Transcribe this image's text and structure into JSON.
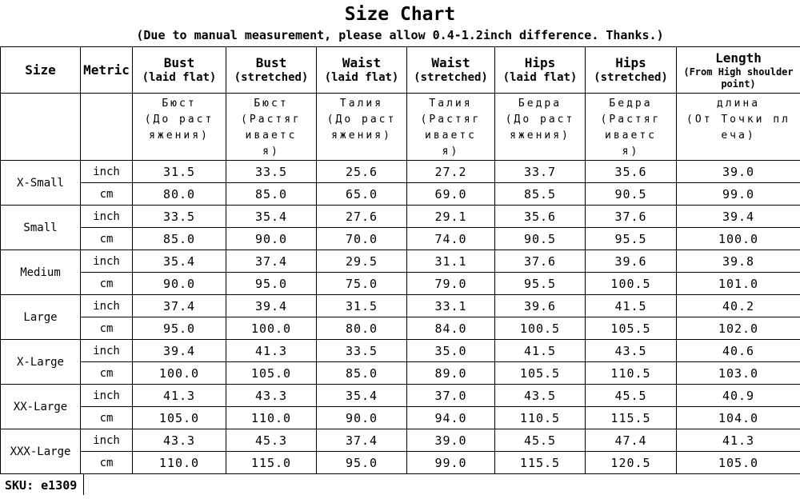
{
  "title": "Size Chart",
  "subtitle": "(Due to manual measurement, please allow 0.4-1.2inch difference. Thanks.)",
  "sku": "SKU: e1309",
  "chart_data": {
    "type": "table",
    "title": "Size Chart",
    "columns": [
      {
        "en": "Size",
        "sub": "",
        "ru": ""
      },
      {
        "en": "Metric",
        "sub": "",
        "ru": ""
      },
      {
        "en": "Bust",
        "sub": "(laid flat)",
        "ru": "Бюст\n(До раст\nяжения)"
      },
      {
        "en": "Bust",
        "sub": "(stretched)",
        "ru": "Бюст\n(Растяг\nиваетс\nя)"
      },
      {
        "en": "Waist",
        "sub": "(laid flat)",
        "ru": "Талия\n(До раст\nяжения)"
      },
      {
        "en": "Waist",
        "sub": "(stretched)",
        "ru": "Талия\n(Растяг\nиваетс\nя)"
      },
      {
        "en": "Hips",
        "sub": "(laid flat)",
        "ru": "Бедра\n(До раст\nяжения)"
      },
      {
        "en": "Hips",
        "sub": "(stretched)",
        "ru": "Бедра\n(Растяг\nиваетс\nя)"
      },
      {
        "en": "Length",
        "sub": "(From High shoulder point)",
        "ru": "длина\n(От Точки пл\nеча)"
      }
    ],
    "sizes": [
      {
        "label": "X-Small",
        "metrics": [
          {
            "label": "inch",
            "values": [
              "31.5",
              "33.5",
              "25.6",
              "27.2",
              "33.7",
              "35.6",
              "39.0"
            ]
          },
          {
            "label": "cm",
            "values": [
              "80.0",
              "85.0",
              "65.0",
              "69.0",
              "85.5",
              "90.5",
              "99.0"
            ]
          }
        ]
      },
      {
        "label": "Small",
        "metrics": [
          {
            "label": "inch",
            "values": [
              "33.5",
              "35.4",
              "27.6",
              "29.1",
              "35.6",
              "37.6",
              "39.4"
            ]
          },
          {
            "label": "cm",
            "values": [
              "85.0",
              "90.0",
              "70.0",
              "74.0",
              "90.5",
              "95.5",
              "100.0"
            ]
          }
        ]
      },
      {
        "label": "Medium",
        "metrics": [
          {
            "label": "inch",
            "values": [
              "35.4",
              "37.4",
              "29.5",
              "31.1",
              "37.6",
              "39.6",
              "39.8"
            ]
          },
          {
            "label": "cm",
            "values": [
              "90.0",
              "95.0",
              "75.0",
              "79.0",
              "95.5",
              "100.5",
              "101.0"
            ]
          }
        ]
      },
      {
        "label": "Large",
        "metrics": [
          {
            "label": "inch",
            "values": [
              "37.4",
              "39.4",
              "31.5",
              "33.1",
              "39.6",
              "41.5",
              "40.2"
            ]
          },
          {
            "label": "cm",
            "values": [
              "95.0",
              "100.0",
              "80.0",
              "84.0",
              "100.5",
              "105.5",
              "102.0"
            ]
          }
        ]
      },
      {
        "label": "X-Large",
        "metrics": [
          {
            "label": "inch",
            "values": [
              "39.4",
              "41.3",
              "33.5",
              "35.0",
              "41.5",
              "43.5",
              "40.6"
            ]
          },
          {
            "label": "cm",
            "values": [
              "100.0",
              "105.0",
              "85.0",
              "89.0",
              "105.5",
              "110.5",
              "103.0"
            ]
          }
        ]
      },
      {
        "label": "XX-Large",
        "metrics": [
          {
            "label": "inch",
            "values": [
              "41.3",
              "43.3",
              "35.4",
              "37.0",
              "43.5",
              "45.5",
              "40.9"
            ]
          },
          {
            "label": "cm",
            "values": [
              "105.0",
              "110.0",
              "90.0",
              "94.0",
              "110.5",
              "115.5",
              "104.0"
            ]
          }
        ]
      },
      {
        "label": "XXX-Large",
        "metrics": [
          {
            "label": "inch",
            "values": [
              "43.3",
              "45.3",
              "37.4",
              "39.0",
              "45.5",
              "47.4",
              "41.3"
            ]
          },
          {
            "label": "cm",
            "values": [
              "110.0",
              "115.0",
              "95.0",
              "99.0",
              "115.5",
              "120.5",
              "105.0"
            ]
          }
        ]
      }
    ]
  }
}
